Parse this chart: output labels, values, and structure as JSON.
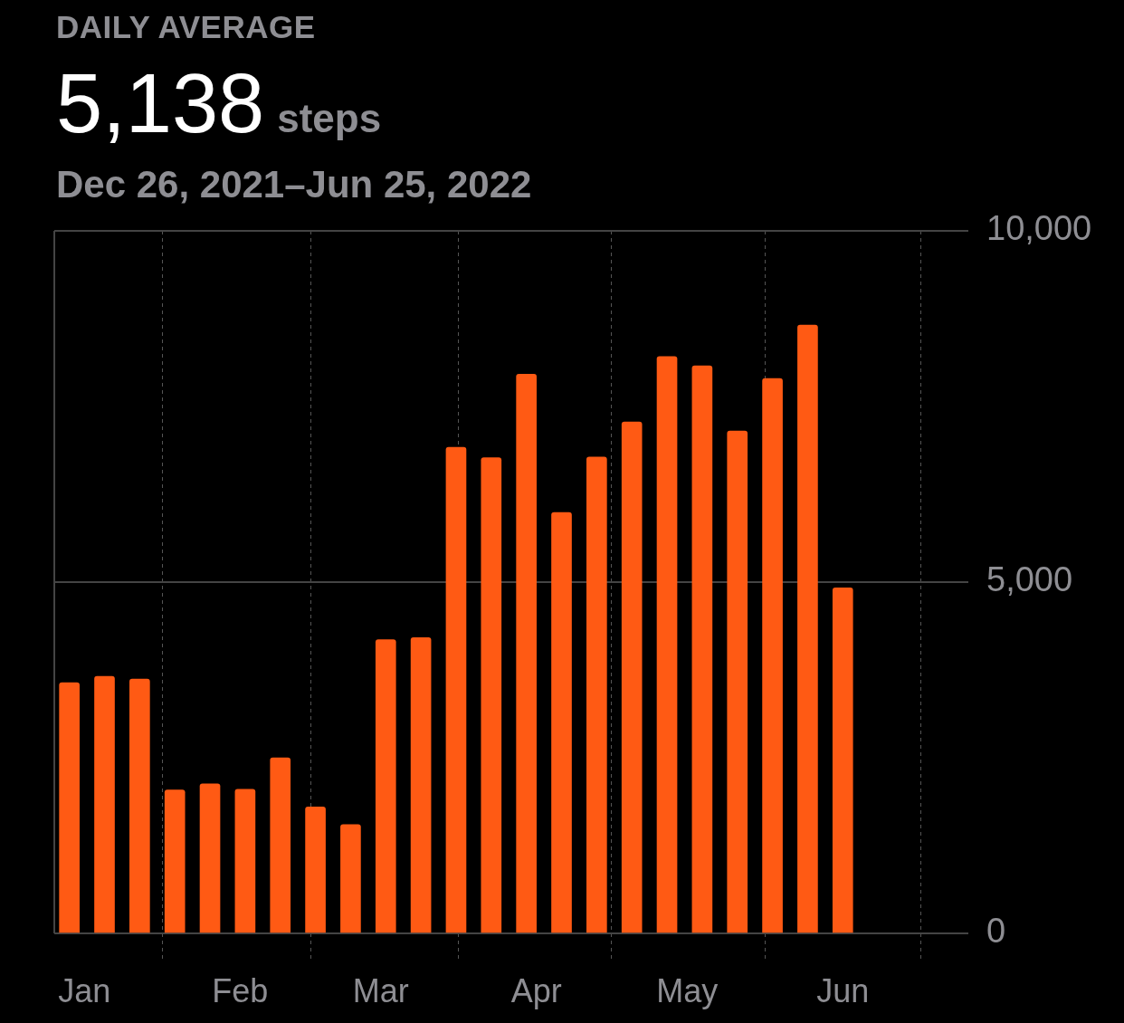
{
  "chart_data": {
    "type": "bar",
    "title": "DAILY AVERAGE",
    "subtitle": "Dec 26, 2021–Jun 25, 2022",
    "annotations": [
      "5,138",
      "steps"
    ],
    "x": [
      "2021-12-29",
      "2022-01-05",
      "2022-01-12",
      "2022-01-19",
      "2022-01-26",
      "2022-02-02",
      "2022-02-09",
      "2022-02-16",
      "2022-02-23",
      "2022-03-02",
      "2022-03-09",
      "2022-03-16",
      "2022-03-23",
      "2022-03-30",
      "2022-04-06",
      "2022-04-13",
      "2022-04-20",
      "2022-04-27",
      "2022-05-04",
      "2022-05-11",
      "2022-05-18",
      "2022-05-25",
      "2022-06-01"
    ],
    "values": [
      3570,
      3660,
      3620,
      2040,
      2130,
      2050,
      2500,
      1800,
      1550,
      4180,
      4210,
      6920,
      6770,
      7960,
      5990,
      6780,
      7280,
      8210,
      8080,
      7150,
      7900,
      8660,
      4920
    ],
    "color": "#ff5a14",
    "xlim": [
      "2021-12-26",
      "2022-06-26"
    ],
    "xticks": [
      {
        "value": "2022-01-01",
        "label": "Jan"
      },
      {
        "value": "2022-02-01",
        "label": "Feb"
      },
      {
        "value": "2022-03-01",
        "label": "Mar"
      },
      {
        "value": "2022-04-01",
        "label": "Apr"
      },
      {
        "value": "2022-05-01",
        "label": "May"
      },
      {
        "value": "2022-06-01",
        "label": "Jun"
      }
    ],
    "ylim": [
      0,
      10000
    ],
    "yticks": [
      {
        "value": 0,
        "label": "0"
      },
      {
        "value": 5000,
        "label": "5,000"
      },
      {
        "value": 10000,
        "label": "10,000"
      }
    ],
    "grid": true
  }
}
